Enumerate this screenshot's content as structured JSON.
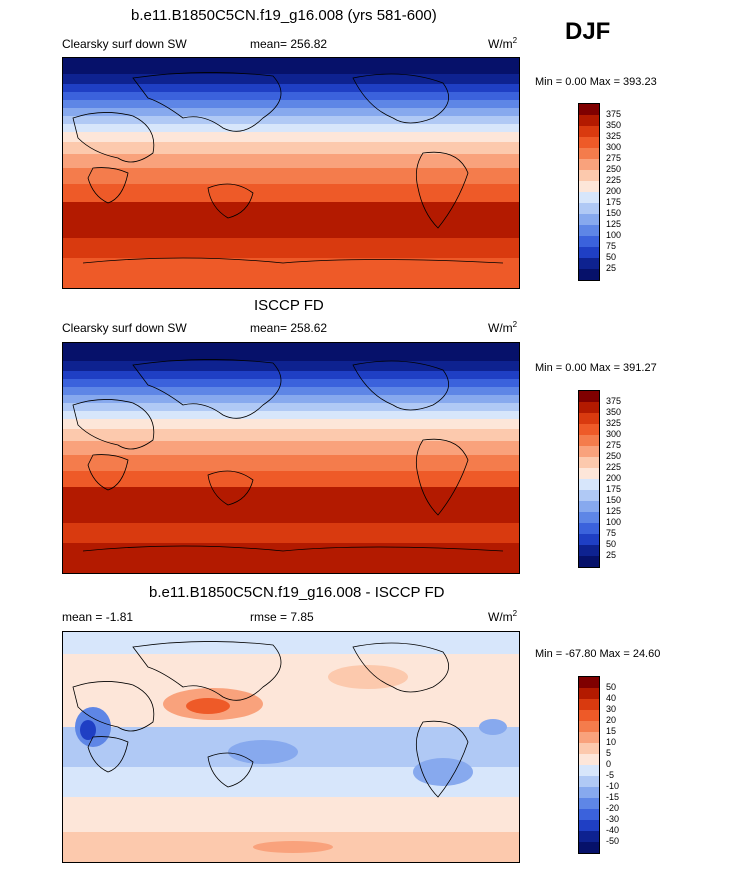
{
  "season": "DJF",
  "panels": [
    {
      "title": "b.e11.B1850C5CN.f19_g16.008 (yrs 581-600)",
      "left_label": "Clearsky surf down SW",
      "mean_text": "mean= 256.82",
      "unit_base": "W/m",
      "unit_sup": "2",
      "minmax": "Min =   0.00 Max = 393.23",
      "colorbar_labels": [
        "375",
        "350",
        "325",
        "300",
        "275",
        "250",
        "225",
        "200",
        "175",
        "150",
        "125",
        "100",
        "75",
        "50",
        "25"
      ]
    },
    {
      "title": "ISCCP FD",
      "left_label": "Clearsky surf down SW",
      "mean_text": "mean= 258.62",
      "unit_base": "W/m",
      "unit_sup": "2",
      "minmax": "Min =   0.00 Max = 391.27",
      "colorbar_labels": [
        "375",
        "350",
        "325",
        "300",
        "275",
        "250",
        "225",
        "200",
        "175",
        "150",
        "125",
        "100",
        "75",
        "50",
        "25"
      ]
    },
    {
      "title": "b.e11.B1850C5CN.f19_g16.008 - ISCCP FD",
      "left_label": "mean =  -1.81",
      "mean_text": "rmse =   7.85",
      "unit_base": "W/m",
      "unit_sup": "2",
      "minmax": "Min = -67.80 Max =  24.60",
      "colorbar_labels": [
        "50",
        "40",
        "30",
        "20",
        "15",
        "10",
        "5",
        "0",
        "-5",
        "-10",
        "-15",
        "-20",
        "-30",
        "-40",
        "-50"
      ]
    }
  ],
  "colors": {
    "abs_scale": [
      "#7f0000",
      "#b31a00",
      "#d93a0f",
      "#ee5a28",
      "#f47c4c",
      "#f9a27c",
      "#fcc9ad",
      "#fde6d9",
      "#d7e6fb",
      "#b0c9f5",
      "#87a9ee",
      "#5e86e6",
      "#3b62dc",
      "#1f3fc4",
      "#0e2290",
      "#06116a"
    ],
    "diff_scale": [
      "#7f0000",
      "#b31a00",
      "#d93a0f",
      "#ee5a28",
      "#f47c4c",
      "#f9a27c",
      "#fcc9ad",
      "#fde6d9",
      "#d7e6fb",
      "#b0c9f5",
      "#87a9ee",
      "#5e86e6",
      "#3b62dc",
      "#1f3fc4",
      "#0e2290",
      "#06116a"
    ]
  }
}
